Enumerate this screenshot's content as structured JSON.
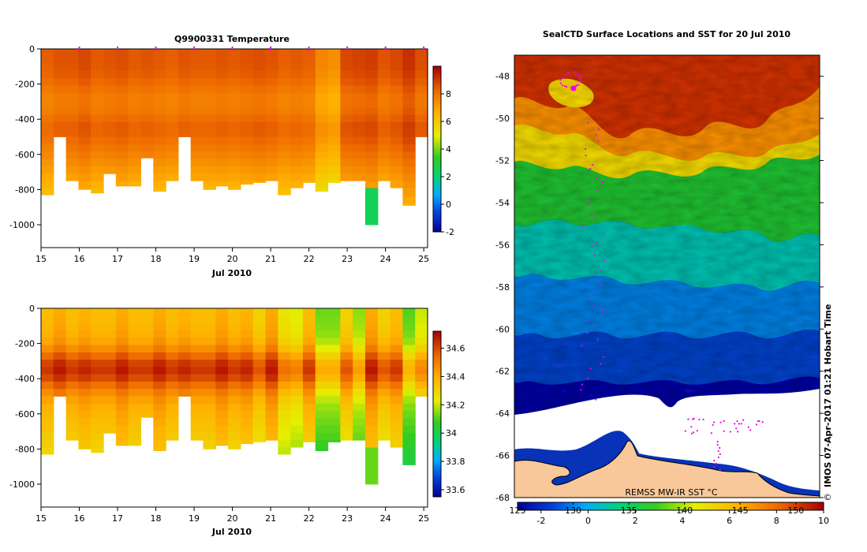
{
  "chart_data": [
    {
      "type": "heatmap",
      "title": "Q9900331  Temperature",
      "xlabel": "Jul 2010",
      "xticks": [
        "15",
        "16",
        "17",
        "18",
        "19",
        "20",
        "21",
        "22",
        "23",
        "24",
        "25"
      ],
      "yticks": [
        "0",
        "-200",
        "-400",
        "-600",
        "-800",
        "-1000"
      ],
      "xlim": [
        15,
        25.1
      ],
      "ylim": [
        -1130,
        0
      ],
      "colorbar": {
        "ticks": [
          "8",
          "6",
          "4",
          "2",
          "0",
          "-2"
        ],
        "range": [
          -2,
          10
        ]
      },
      "profile_max_depths": [
        830,
        500,
        750,
        800,
        820,
        710,
        780,
        780,
        620,
        810,
        750,
        500,
        750,
        800,
        780,
        800,
        770,
        760,
        750,
        830,
        790,
        760,
        810,
        760,
        750,
        750,
        1000,
        750,
        790,
        890,
        500
      ],
      "surface_temps": [
        8.4,
        8.6,
        8.6,
        8.8,
        8.5,
        8.6,
        8.7,
        8.5,
        8.6,
        8.5,
        8.4,
        8.6,
        8.5,
        8.5,
        8.6,
        8.5,
        8.6,
        8.7,
        8.6,
        8.4,
        8.5,
        8.4,
        7.6,
        7.4,
        8.8,
        8.9,
        9.0,
        8.6,
        8.8,
        9.2,
        8.7
      ],
      "cold_anomaly": {
        "day": 23.6,
        "depth_range": [
          800,
          1000
        ],
        "temp": 2.5
      }
    },
    {
      "type": "heatmap",
      "title": "",
      "xlabel": "Jul 2010",
      "xticks": [
        "15",
        "16",
        "17",
        "18",
        "19",
        "20",
        "21",
        "22",
        "23",
        "24",
        "25"
      ],
      "yticks": [
        "0",
        "-200",
        "-400",
        "-600",
        "-800",
        "-1000"
      ],
      "xlim": [
        15,
        25.1
      ],
      "ylim": [
        -1130,
        0
      ],
      "colorbar": {
        "ticks": [
          "34.6",
          "34.4",
          "34.2",
          "34",
          "33.8",
          "33.6"
        ],
        "range": [
          33.55,
          34.72
        ]
      },
      "profile_max_depths": [
        830,
        500,
        750,
        800,
        820,
        710,
        780,
        780,
        620,
        810,
        750,
        500,
        750,
        800,
        780,
        800,
        770,
        760,
        750,
        830,
        790,
        760,
        810,
        760,
        750,
        750,
        1000,
        750,
        790,
        890,
        500
      ],
      "surface_salinity": [
        34.35,
        34.4,
        34.35,
        34.38,
        34.35,
        34.35,
        34.4,
        34.35,
        34.35,
        34.4,
        34.35,
        34.38,
        34.35,
        34.35,
        34.4,
        34.35,
        34.38,
        34.3,
        34.4,
        34.25,
        34.22,
        34.35,
        34.12,
        34.12,
        34.3,
        34.15,
        34.4,
        34.3,
        34.35,
        34.1,
        34.2
      ]
    },
    {
      "type": "heatmap",
      "title": "SealCTD Surface Locations and SST for 20 Jul 2010",
      "xlabel": "",
      "yticks": [
        "-48",
        "-50",
        "-52",
        "-54",
        "-56",
        "-58",
        "-60",
        "-62",
        "-64",
        "-66",
        "-68"
      ],
      "ylim": [
        -68,
        -47
      ],
      "colorbar": {
        "ticks_top": [
          "125",
          "130",
          "135",
          "140",
          "145",
          "150"
        ],
        "ticks_bottom": [
          "-2",
          "0",
          "2",
          "4",
          "6",
          "8",
          "10"
        ],
        "range": [
          -3,
          10
        ]
      },
      "source_label": "REMSS MW-IR SST °C",
      "side_label": "IMOS 07-Apr-2017 01:21 Hobart Time",
      "copyright_symbol": "©"
    }
  ],
  "colors": {
    "land": "#f8c89a",
    "seal_track": "#ee00ee",
    "white": "#ffffff"
  }
}
